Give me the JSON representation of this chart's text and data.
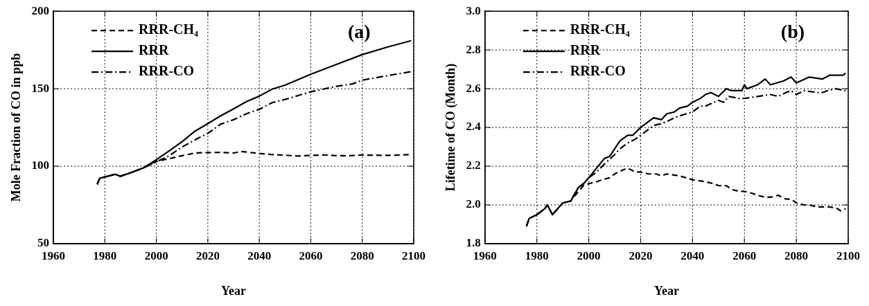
{
  "chart_data": [
    {
      "type": "line",
      "xlabel": "Year",
      "ylabel": "Mole Fraction of CO in ppb",
      "annotations": [
        "(a)"
      ],
      "xlim": [
        1960,
        2100
      ],
      "xticks": [
        1960,
        1980,
        2000,
        2020,
        2040,
        2060,
        2080,
        2100
      ],
      "ylim": [
        50,
        200
      ],
      "yticks": [
        50,
        100,
        150,
        200
      ],
      "grid": true,
      "legend": "top left",
      "marker": "none",
      "series": [
        {
          "name": "RRR-CH₄",
          "color": "#000000",
          "line_style": "dashed",
          "x": [
            1977,
            1978,
            1984,
            1986,
            1990,
            1995,
            2000,
            2005,
            2010,
            2015,
            2020,
            2025,
            2030,
            2033,
            2040,
            2045,
            2050,
            2055,
            2060,
            2065,
            2070,
            2075,
            2080,
            2090,
            2099
          ],
          "values": [
            88.3,
            92.2,
            94.8,
            93.5,
            95.8,
            98.9,
            103.1,
            104.9,
            106.8,
            108.5,
            108.8,
            108.9,
            108.5,
            109.5,
            108.2,
            107.5,
            107.1,
            106.6,
            106.9,
            107.3,
            106.8,
            106.8,
            107.2,
            107.0,
            107.5
          ]
        },
        {
          "name": "RRR",
          "color": "#000000",
          "line_style": "solid",
          "x": [
            1977,
            1978,
            1984,
            1986,
            1990,
            1995,
            2000,
            2005,
            2010,
            2015,
            2020,
            2025,
            2030,
            2035,
            2040,
            2045,
            2050,
            2060,
            2070,
            2080,
            2090,
            2099
          ],
          "values": [
            88.3,
            92.2,
            94.8,
            93.5,
            95.8,
            98.9,
            104.2,
            109.9,
            115.8,
            122.6,
            127.5,
            132.5,
            137.0,
            141.7,
            145.2,
            149.7,
            152.3,
            159.3,
            165.7,
            172.0,
            177.0,
            181.0
          ]
        },
        {
          "name": "RRR-CO",
          "color": "#000000",
          "line_style": "dashdot",
          "x": [
            1977,
            1978,
            1984,
            1986,
            1990,
            1995,
            2000,
            2005,
            2010,
            2015,
            2020,
            2025,
            2030,
            2035,
            2040,
            2045,
            2050,
            2060,
            2070,
            2076,
            2080,
            2090,
            2099
          ],
          "values": [
            88.3,
            92.2,
            94.8,
            93.5,
            95.8,
            98.9,
            102.8,
            106.8,
            112.4,
            117.0,
            121.2,
            127.1,
            130.0,
            133.9,
            136.7,
            141.0,
            143.1,
            148.0,
            151.6,
            153.0,
            155.5,
            158.5,
            161.0
          ]
        }
      ]
    },
    {
      "type": "line",
      "xlabel": "Year",
      "ylabel": "Lifetime of CO (Month)",
      "annotations": [
        "(b)"
      ],
      "xlim": [
        1960,
        2100
      ],
      "xticks": [
        1960,
        1980,
        2000,
        2020,
        2040,
        2060,
        2080,
        2100
      ],
      "ylim": [
        1.8,
        3.0
      ],
      "yticks": [
        {
          "value": 1.8,
          "label": "1.8"
        },
        {
          "value": 2.0,
          "label": "2.0"
        },
        {
          "value": 2.2,
          "label": "2.2"
        },
        {
          "value": 2.4,
          "label": "2.4"
        },
        {
          "value": 2.6,
          "label": "2.6"
        },
        {
          "value": 2.8,
          "label": "2.8"
        },
        {
          "value": 3.0,
          "label": "3.0"
        }
      ],
      "grid": true,
      "legend": "top left",
      "marker": "none",
      "series": [
        {
          "name": "RRR-CH₄",
          "color": "#000000",
          "line_style": "dashed",
          "x": [
            1976,
            1977,
            1980,
            1983,
            1984,
            1986,
            1988,
            1990,
            1993,
            1996,
            1998,
            2000,
            2003,
            2005,
            2008,
            2010,
            2013,
            2015,
            2018,
            2020,
            2023,
            2026,
            2028,
            2030,
            2035,
            2040,
            2045,
            2048,
            2050,
            2053,
            2055,
            2058,
            2060,
            2063,
            2065,
            2068,
            2070,
            2073,
            2076,
            2078,
            2080,
            2083,
            2085,
            2088,
            2090,
            2093,
            2096,
            2097,
            2099
          ],
          "values": [
            1.89,
            1.93,
            1.95,
            1.98,
            2.0,
            1.95,
            1.98,
            2.01,
            2.02,
            2.07,
            2.1,
            2.11,
            2.12,
            2.13,
            2.14,
            2.16,
            2.18,
            2.19,
            2.17,
            2.17,
            2.16,
            2.16,
            2.15,
            2.16,
            2.15,
            2.13,
            2.12,
            2.11,
            2.1,
            2.1,
            2.08,
            2.07,
            2.07,
            2.06,
            2.05,
            2.04,
            2.04,
            2.05,
            2.03,
            2.03,
            2.01,
            2.0,
            2.0,
            1.99,
            1.99,
            1.99,
            1.98,
            1.97,
            1.98
          ]
        },
        {
          "name": "RRR",
          "color": "#000000",
          "line_style": "solid",
          "x": [
            1976,
            1977,
            1980,
            1983,
            1984,
            1986,
            1988,
            1990,
            1993,
            1996,
            1998,
            2000,
            2003,
            2006,
            2008,
            2010,
            2012,
            2015,
            2017,
            2020,
            2023,
            2025,
            2028,
            2030,
            2033,
            2035,
            2038,
            2040,
            2043,
            2045,
            2047,
            2050,
            2053,
            2055,
            2059,
            2060,
            2061,
            2065,
            2068,
            2070,
            2075,
            2078,
            2080,
            2085,
            2090,
            2093,
            2095,
            2098,
            2099
          ],
          "values": [
            1.89,
            1.93,
            1.95,
            1.98,
            2.0,
            1.95,
            1.98,
            2.01,
            2.02,
            2.09,
            2.11,
            2.14,
            2.19,
            2.24,
            2.25,
            2.29,
            2.33,
            2.36,
            2.36,
            2.4,
            2.43,
            2.45,
            2.44,
            2.47,
            2.48,
            2.5,
            2.51,
            2.53,
            2.55,
            2.57,
            2.58,
            2.56,
            2.6,
            2.59,
            2.59,
            2.62,
            2.6,
            2.62,
            2.65,
            2.62,
            2.64,
            2.66,
            2.63,
            2.66,
            2.65,
            2.67,
            2.67,
            2.67,
            2.68
          ]
        },
        {
          "name": "RRR-CO",
          "color": "#000000",
          "line_style": "dashdot",
          "x": [
            1976,
            1977,
            1980,
            1983,
            1984,
            1986,
            1988,
            1990,
            1993,
            1996,
            1998,
            2000,
            2003,
            2006,
            2010,
            2012,
            2015,
            2018,
            2020,
            2023,
            2025,
            2028,
            2030,
            2033,
            2035,
            2040,
            2043,
            2045,
            2050,
            2052,
            2054,
            2058,
            2060,
            2065,
            2070,
            2073,
            2076,
            2078,
            2080,
            2083,
            2088,
            2090,
            2092,
            2095,
            2099
          ],
          "values": [
            1.89,
            1.93,
            1.95,
            1.98,
            2.0,
            1.95,
            1.98,
            2.01,
            2.02,
            2.09,
            2.11,
            2.14,
            2.17,
            2.21,
            2.26,
            2.29,
            2.32,
            2.34,
            2.36,
            2.39,
            2.41,
            2.42,
            2.43,
            2.45,
            2.46,
            2.48,
            2.51,
            2.51,
            2.54,
            2.53,
            2.56,
            2.55,
            2.55,
            2.56,
            2.57,
            2.56,
            2.58,
            2.59,
            2.57,
            2.59,
            2.58,
            2.58,
            2.59,
            2.6,
            2.59
          ]
        }
      ]
    }
  ]
}
